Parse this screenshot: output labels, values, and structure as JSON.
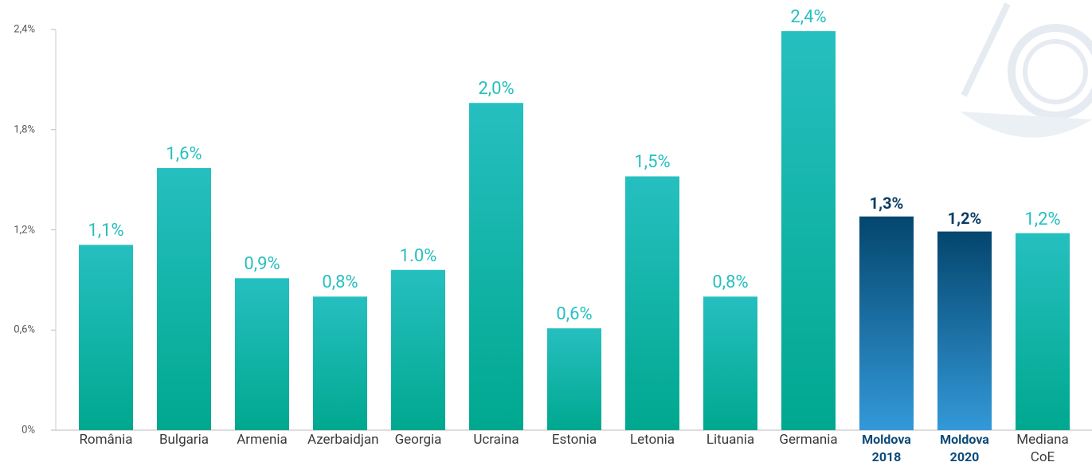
{
  "chart_data": {
    "type": "bar",
    "categories": [
      "România",
      "Bulgaria",
      "Armenia",
      "Azerbaidjan",
      "Georgia",
      "Ucraina",
      "Estonia",
      "Letonia",
      "Lituania",
      "Germania",
      "Moldova 2018",
      "Moldova 2020",
      "Mediana CoE"
    ],
    "values": [
      1.11,
      1.57,
      0.91,
      0.8,
      0.96,
      1.96,
      0.61,
      1.52,
      0.8,
      2.39,
      1.28,
      1.19,
      1.18
    ],
    "value_labels": [
      "1,1%",
      "1,6%",
      "0,9%",
      "0,8%",
      "1.0%",
      "2,0%",
      "0,6%",
      "1,5%",
      "0,8%",
      "2,4%",
      "1,3%",
      "1,2%",
      "1,2%"
    ],
    "colors": [
      [
        "#26bfc0",
        "#00a88f"
      ],
      [
        "#26bfc0",
        "#00a88f"
      ],
      [
        "#26bfc0",
        "#00a88f"
      ],
      [
        "#26bfc0",
        "#00a88f"
      ],
      [
        "#26bfc0",
        "#00a88f"
      ],
      [
        "#26bfc0",
        "#00a88f"
      ],
      [
        "#26bfc0",
        "#00a88f"
      ],
      [
        "#26bfc0",
        "#00a88f"
      ],
      [
        "#26bfc0",
        "#00a88f"
      ],
      [
        "#26bfc0",
        "#00a88f"
      ],
      [
        "#04466e",
        "#3399d8"
      ],
      [
        "#04466e",
        "#3399d8"
      ],
      [
        "#26bfc0",
        "#00a88f"
      ]
    ],
    "highlight_indices": [
      10,
      11
    ],
    "ylim": [
      0,
      2.4
    ],
    "yticks": [
      {
        "value": 0,
        "label": "0%"
      },
      {
        "value": 0.6,
        "label": "0,6%"
      },
      {
        "value": 1.2,
        "label": "1,2%"
      },
      {
        "value": 1.8,
        "label": "1,8%"
      },
      {
        "value": 2.4,
        "label": "2,4%"
      }
    ]
  }
}
